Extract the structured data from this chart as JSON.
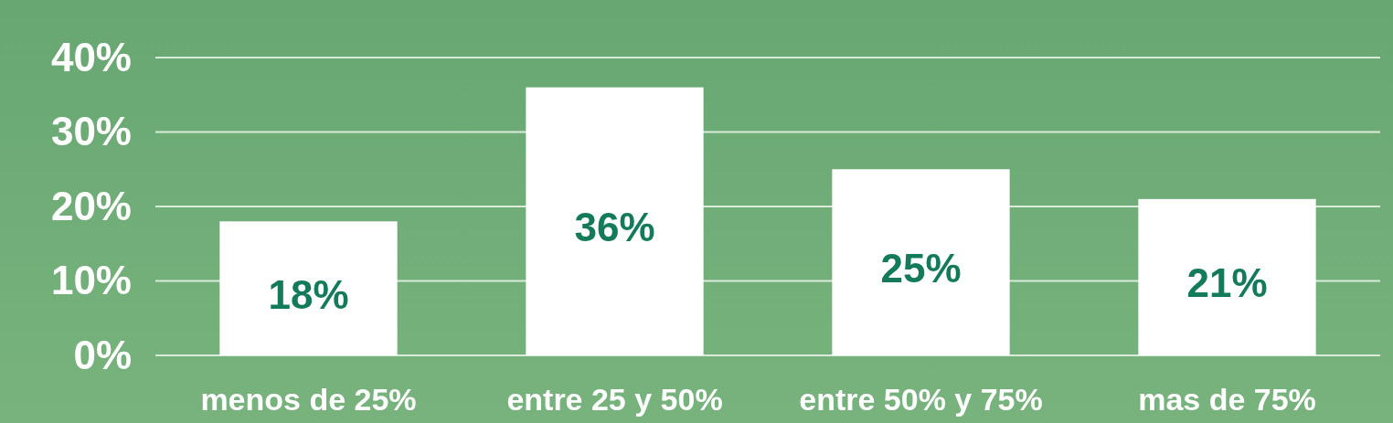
{
  "chart_data": {
    "type": "bar",
    "categories": [
      "menos de 25%",
      "entre 25 y 50%",
      "entre 50% y 75%",
      "mas de 75%"
    ],
    "values": [
      18,
      36,
      25,
      21
    ],
    "color": "#ffffff",
    "value_labels": [
      "18%",
      "36%",
      "25%",
      "21%"
    ],
    "ylim": [
      0,
      40
    ],
    "yticks": [
      {
        "value": 0,
        "label": "0%"
      },
      {
        "value": 10,
        "label": "10%"
      },
      {
        "value": 20,
        "label": "20%"
      },
      {
        "value": 30,
        "label": "30%"
      },
      {
        "value": 40,
        "label": "40%"
      }
    ],
    "grid": "y"
  }
}
